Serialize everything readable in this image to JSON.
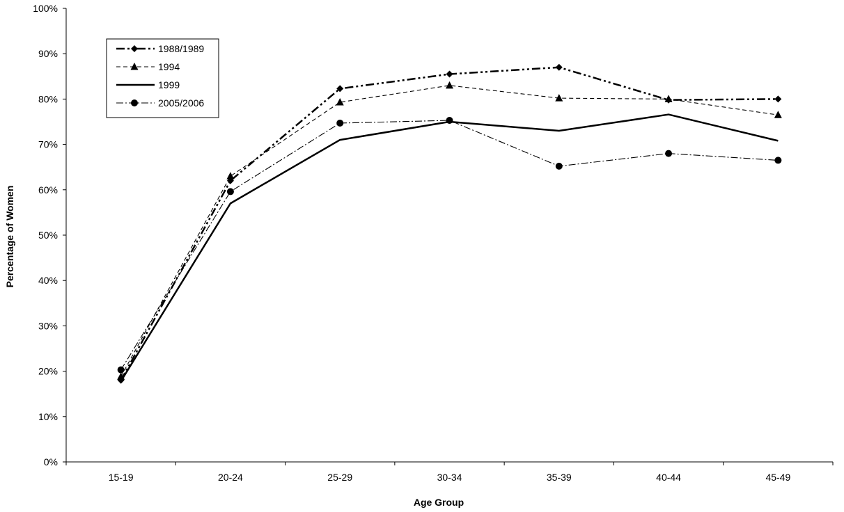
{
  "chart_data": {
    "type": "line",
    "categories": [
      "15-19",
      "20-24",
      "25-29",
      "30-34",
      "35-39",
      "40-44",
      "45-49"
    ],
    "series": [
      {
        "name": "1988/1989",
        "values": [
          18,
          62,
          82.3,
          85.5,
          87,
          79.8,
          80
        ],
        "marker": "diamond",
        "dash": "12,4,3,4,3,4",
        "stroke_weight": "thick"
      },
      {
        "name": "1994",
        "values": [
          18.8,
          63,
          79.3,
          83,
          80.2,
          80,
          76.5
        ],
        "marker": "triangle",
        "dash": "6,4",
        "stroke_weight": "thin"
      },
      {
        "name": "1999",
        "values": [
          17.8,
          57,
          71,
          75,
          73,
          76.6,
          70.8
        ],
        "marker": "none",
        "dash": "",
        "stroke_weight": "thick"
      },
      {
        "name": "2005/2006",
        "values": [
          20.3,
          59.6,
          74.7,
          75.3,
          65.2,
          68,
          66.5
        ],
        "marker": "circle",
        "dash": "10,3,2,3",
        "stroke_weight": "thin"
      }
    ],
    "xlabel": "Age Group",
    "ylabel": "Percentage of Women",
    "ylim": [
      0,
      100
    ],
    "yticks": [
      "0%",
      "10%",
      "20%",
      "30%",
      "40%",
      "50%",
      "60%",
      "70%",
      "80%",
      "90%",
      "100%"
    ],
    "grid": false,
    "legend_position": "top-left",
    "colors": {
      "line": "#000000",
      "background": "#ffffff"
    }
  }
}
